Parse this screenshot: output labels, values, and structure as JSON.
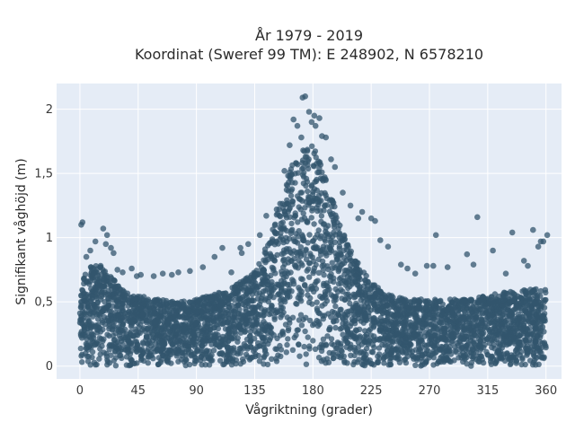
{
  "chart_data": {
    "type": "scatter",
    "title_line1": "År 1979 - 2019",
    "title_line2": "Koordinat (Sweref 99 TM): E 248902, N 6578210",
    "xlabel": "Vågriktning (grader)",
    "ylabel": "Signifikant våghöjd (m)",
    "xlim": [
      -18,
      372
    ],
    "ylim": [
      -0.1,
      2.2
    ],
    "x_ticks": [
      0,
      45,
      90,
      135,
      180,
      225,
      270,
      315,
      360
    ],
    "x_tick_labels": [
      "0",
      "45",
      "90",
      "135",
      "180",
      "225",
      "270",
      "315",
      "360"
    ],
    "y_ticks": [
      0,
      0.5,
      1,
      1.5,
      2
    ],
    "y_tick_labels": [
      "0",
      "0,5",
      "1",
      "1,5",
      "2"
    ],
    "grid": true,
    "marker_color": "#33566e",
    "background": "#e5ecf6",
    "envelope": {
      "x": [
        0,
        5,
        15,
        25,
        35,
        45,
        60,
        75,
        90,
        110,
        125,
        135,
        145,
        155,
        165,
        175,
        180,
        185,
        195,
        205,
        215,
        225,
        240,
        255,
        270,
        285,
        300,
        315,
        330,
        345,
        360
      ],
      "y_max": [
        0.6,
        0.78,
        0.78,
        0.7,
        0.58,
        0.55,
        0.52,
        0.5,
        0.52,
        0.58,
        0.66,
        0.75,
        0.95,
        1.3,
        1.62,
        1.75,
        1.72,
        1.6,
        1.3,
        1.0,
        0.8,
        0.65,
        0.55,
        0.52,
        0.52,
        0.52,
        0.52,
        0.55,
        0.58,
        0.6,
        0.6
      ]
    },
    "outliers": {
      "x": [
        1,
        2,
        5,
        8,
        12,
        16,
        18,
        20,
        21,
        24,
        26,
        29,
        33,
        40,
        44,
        47,
        57,
        64,
        71,
        76,
        85,
        95,
        104,
        110,
        117,
        124,
        125,
        130,
        139,
        144,
        152,
        158,
        162,
        165,
        168,
        171,
        172,
        174,
        177,
        179,
        181,
        182,
        185,
        187,
        190,
        194,
        197,
        203,
        209,
        215,
        218,
        225,
        228,
        232,
        238,
        248,
        253,
        259,
        268,
        273,
        275,
        284,
        299,
        304,
        307,
        319,
        329,
        334,
        343,
        346,
        350,
        354,
        356,
        358,
        361
      ],
      "y": [
        1.1,
        1.12,
        0.85,
        0.9,
        0.97,
        0.78,
        1.07,
        0.95,
        1.02,
        0.92,
        0.88,
        0.75,
        0.73,
        0.76,
        0.7,
        0.71,
        0.7,
        0.72,
        0.71,
        0.73,
        0.74,
        0.77,
        0.85,
        0.92,
        0.73,
        0.92,
        0.88,
        0.95,
        1.02,
        1.17,
        1.22,
        1.52,
        1.72,
        1.92,
        1.87,
        1.78,
        2.09,
        2.1,
        1.98,
        1.9,
        1.95,
        1.87,
        1.93,
        1.79,
        1.78,
        1.61,
        1.55,
        1.35,
        1.25,
        1.15,
        1.2,
        1.15,
        1.13,
        0.98,
        0.93,
        0.79,
        0.76,
        0.72,
        0.78,
        0.78,
        1.02,
        0.77,
        0.87,
        0.79,
        1.16,
        0.9,
        0.72,
        1.04,
        0.82,
        0.78,
        1.06,
        0.93,
        0.97,
        0.97,
        1.02
      ]
    }
  }
}
